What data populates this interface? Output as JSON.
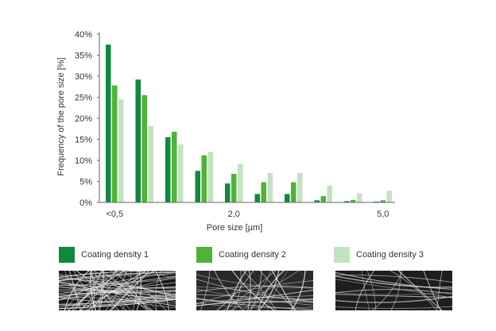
{
  "chart_data": {
    "type": "bar",
    "title": "",
    "xlabel": "Pore size [µm]",
    "ylabel": "Frequency of the pore size [%]",
    "ylim": [
      0,
      40
    ],
    "y_ticks": [
      "0%",
      "5%",
      "10%",
      "15%",
      "20%",
      "25%",
      "30%",
      "35%",
      "40%"
    ],
    "x_tick_labels": [
      {
        "label": "<0,5",
        "group": 0
      },
      {
        "label": "2,0",
        "group": 4
      },
      {
        "label": "5,0",
        "group": 9
      }
    ],
    "groups": 10,
    "series": [
      {
        "name": "Coating density 1",
        "color": "#0f8a3c",
        "values": [
          37.5,
          29.2,
          15.5,
          7.5,
          4.5,
          2.0,
          2.0,
          0.5,
          0.3,
          0.2
        ]
      },
      {
        "name": "Coating density 2",
        "color": "#4cb535",
        "values": [
          27.8,
          25.5,
          16.8,
          11.2,
          6.8,
          4.8,
          4.8,
          1.5,
          0.6,
          0.5
        ]
      },
      {
        "name": "Coating density 3",
        "color": "#c3e3c0",
        "values": [
          24.5,
          18.2,
          13.8,
          12.0,
          9.2,
          7.0,
          7.0,
          4.0,
          2.2,
          2.8
        ]
      }
    ],
    "grid": false,
    "legend_position": "bottom"
  },
  "micrographs": [
    {
      "name": "sem-image-density-1"
    },
    {
      "name": "sem-image-density-2"
    },
    {
      "name": "sem-image-density-3"
    }
  ]
}
